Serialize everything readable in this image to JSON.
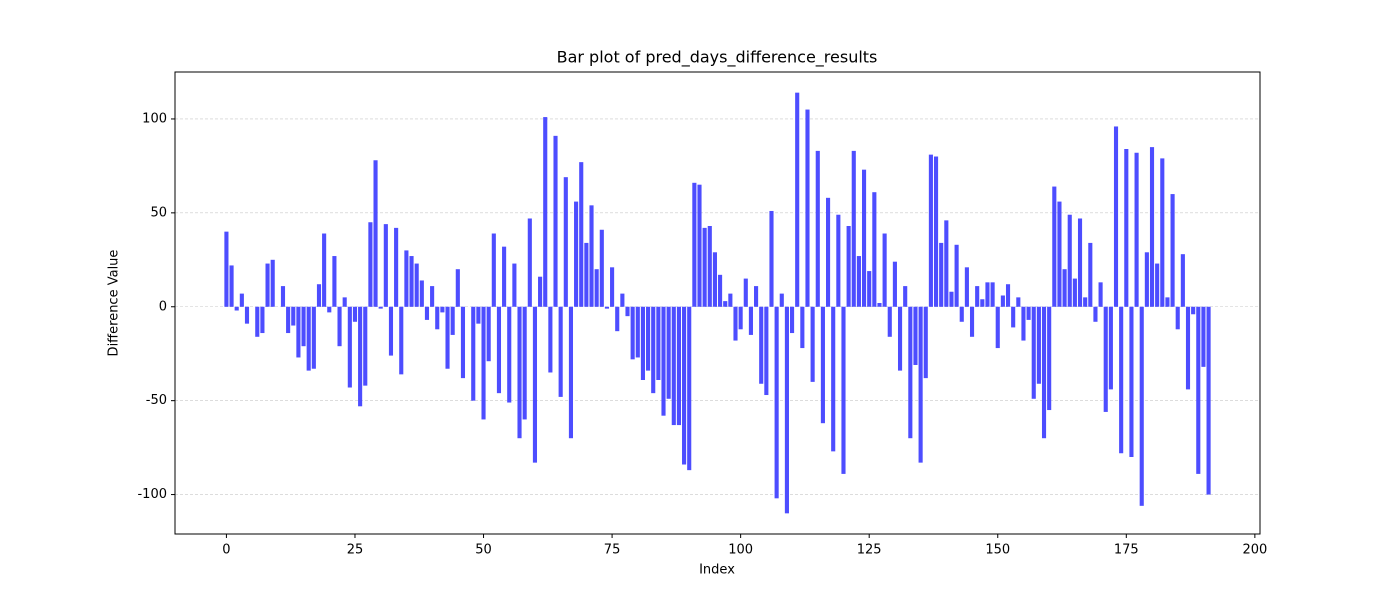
{
  "chart_data": {
    "type": "bar",
    "title": "Bar plot of pred_days_difference_results",
    "x_label": "Index",
    "y_label": "Difference Value",
    "color": "#4d4dff",
    "grid": true,
    "xlim": [
      -10,
      201
    ],
    "xticks": [
      0,
      25,
      50,
      75,
      100,
      125,
      150,
      175,
      200
    ],
    "ylim": [
      -121,
      125
    ],
    "yticks": [
      -100,
      -50,
      0,
      50,
      100
    ],
    "values": [
      40,
      22,
      -2,
      7,
      -9,
      0,
      -16,
      -14,
      23,
      25,
      0,
      11,
      -14,
      -10,
      -27,
      -21,
      -34,
      -33,
      12,
      39,
      -3,
      27,
      -21,
      5,
      -43,
      -8,
      -53,
      -42,
      45,
      78,
      -1,
      44,
      -26,
      42,
      -36,
      30,
      27,
      23,
      14,
      -7,
      11,
      -12,
      -3,
      -33,
      -15,
      20,
      -38,
      0,
      -50,
      -9,
      -60,
      -29,
      39,
      -46,
      32,
      -51,
      23,
      -70,
      -60,
      47,
      -83,
      16,
      101,
      -35,
      91,
      -48,
      69,
      -70,
      56,
      77,
      34,
      54,
      20,
      41,
      -1,
      21,
      -13,
      7,
      -5,
      -28,
      -27,
      -39,
      -34,
      -46,
      -39,
      -58,
      -49,
      -63,
      -63,
      -84,
      -87,
      66,
      65,
      42,
      43,
      29,
      17,
      3,
      7,
      -18,
      -12,
      15,
      -15,
      11,
      -41,
      -47,
      51,
      -102,
      7,
      -110,
      -14,
      114,
      -22,
      105,
      -40,
      83,
      -62,
      58,
      -77,
      49,
      -89,
      43,
      83,
      27,
      73,
      19,
      61,
      2,
      39,
      -16,
      24,
      -34,
      11,
      -70,
      -31,
      -83,
      -38,
      81,
      80,
      34,
      46,
      8,
      33,
      -8,
      21,
      -16,
      11,
      4,
      13,
      13,
      -22,
      6,
      12,
      -11,
      5,
      -18,
      -7,
      -49,
      -41,
      -70,
      -55,
      64,
      56,
      20,
      49,
      15,
      47,
      5,
      34,
      -8,
      13,
      -56,
      -44,
      96,
      -78,
      84,
      -80,
      82,
      -106,
      29,
      85,
      23,
      79,
      5,
      60,
      -12,
      28,
      -44,
      -4,
      -89,
      -32,
      -100
    ]
  }
}
